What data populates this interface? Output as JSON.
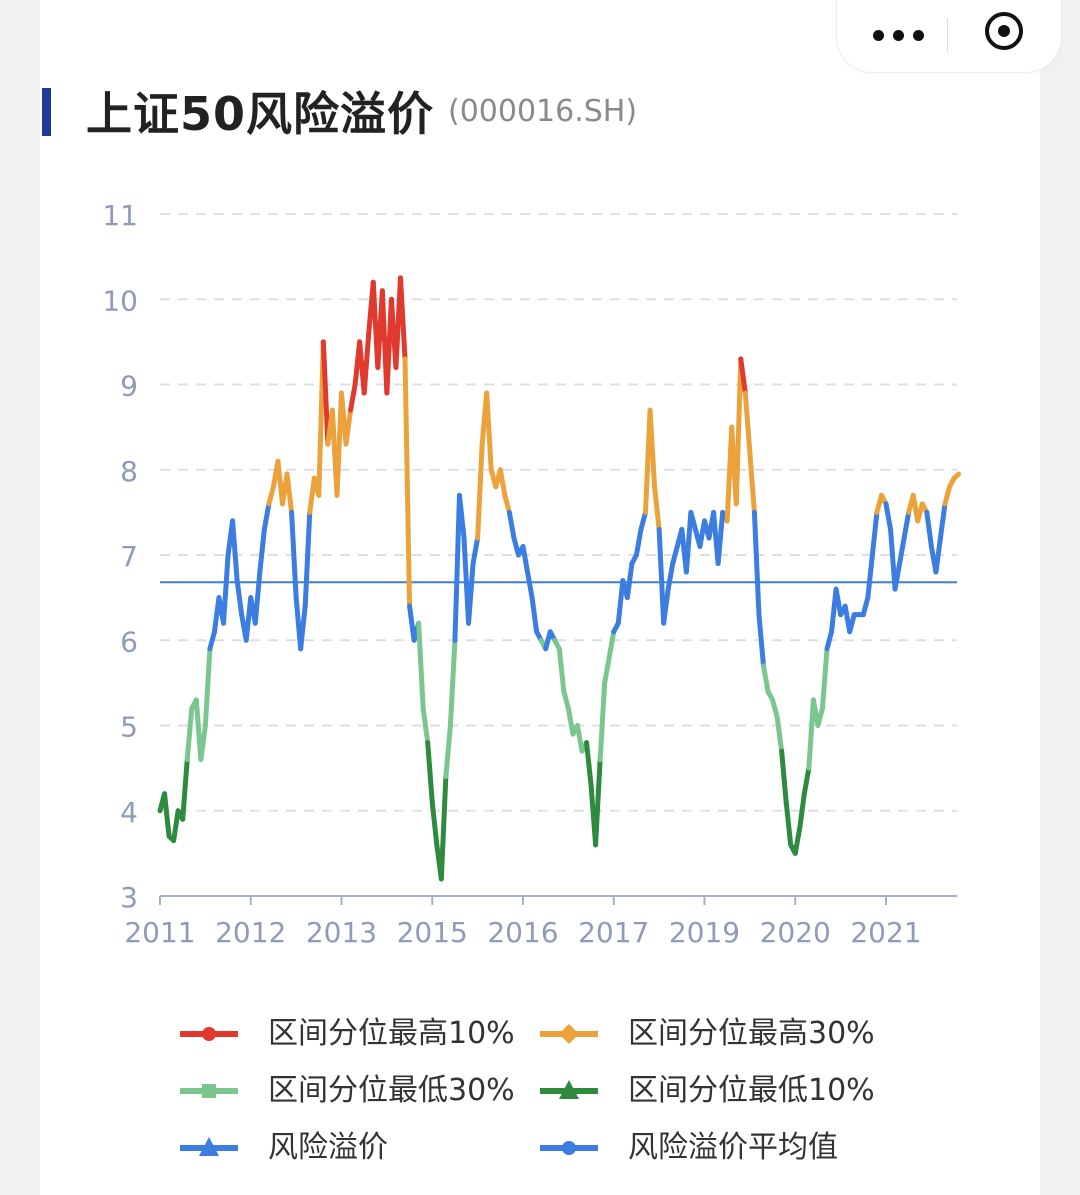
{
  "header": {
    "title": "上证50风险溢价",
    "code": "(000016.SH)"
  },
  "capsule": {
    "more_icon": "more-dots-icon",
    "close_icon": "target-icon"
  },
  "colors": {
    "top10": "#e03a2f",
    "top30": "#eba23a",
    "low30": "#79c78e",
    "low10": "#2e8b3e",
    "premium": "#3b7de0",
    "mean": "#3b7de0",
    "grid": "#dcdfe6",
    "axis": "#a7b0c8",
    "tick_text": "#8f9bb8"
  },
  "chart_data": {
    "type": "line",
    "ylim": [
      3,
      11
    ],
    "yticks": [
      "3",
      "4",
      "5",
      "6",
      "7",
      "8",
      "9",
      "10",
      "11"
    ],
    "xticks": [
      "2011",
      "2012",
      "2013",
      "2015",
      "2016",
      "2017",
      "2019",
      "2020",
      "2021"
    ],
    "xlim": [
      0,
      8.8
    ],
    "mean": 6.68,
    "thresholds": {
      "low10": 4.6,
      "low30": 6.0,
      "high30": 7.5,
      "high10": 8.85
    },
    "series_points": [
      [
        0.0,
        4.0
      ],
      [
        0.05,
        4.2
      ],
      [
        0.1,
        3.7
      ],
      [
        0.15,
        3.65
      ],
      [
        0.2,
        4.0
      ],
      [
        0.25,
        3.9
      ],
      [
        0.3,
        4.6
      ],
      [
        0.35,
        5.2
      ],
      [
        0.4,
        5.3
      ],
      [
        0.45,
        4.6
      ],
      [
        0.5,
        5.0
      ],
      [
        0.55,
        5.9
      ],
      [
        0.6,
        6.1
      ],
      [
        0.65,
        6.5
      ],
      [
        0.7,
        6.2
      ],
      [
        0.75,
        7.0
      ],
      [
        0.8,
        7.4
      ],
      [
        0.85,
        6.7
      ],
      [
        0.9,
        6.3
      ],
      [
        0.95,
        6.0
      ],
      [
        1.0,
        6.5
      ],
      [
        1.05,
        6.2
      ],
      [
        1.1,
        6.8
      ],
      [
        1.15,
        7.3
      ],
      [
        1.2,
        7.6
      ],
      [
        1.25,
        7.8
      ],
      [
        1.3,
        8.1
      ],
      [
        1.35,
        7.6
      ],
      [
        1.4,
        7.95
      ],
      [
        1.45,
        7.5
      ],
      [
        1.5,
        6.5
      ],
      [
        1.55,
        5.9
      ],
      [
        1.6,
        6.4
      ],
      [
        1.65,
        7.5
      ],
      [
        1.7,
        7.9
      ],
      [
        1.75,
        7.7
      ],
      [
        1.8,
        9.5
      ],
      [
        1.85,
        8.3
      ],
      [
        1.9,
        8.7
      ],
      [
        1.95,
        7.7
      ],
      [
        2.0,
        8.9
      ],
      [
        2.05,
        8.3
      ],
      [
        2.1,
        8.7
      ],
      [
        2.15,
        9.0
      ],
      [
        2.2,
        9.5
      ],
      [
        2.25,
        8.9
      ],
      [
        2.3,
        9.6
      ],
      [
        2.35,
        10.2
      ],
      [
        2.4,
        9.2
      ],
      [
        2.45,
        10.1
      ],
      [
        2.5,
        8.9
      ],
      [
        2.55,
        10.0
      ],
      [
        2.6,
        9.2
      ],
      [
        2.65,
        10.25
      ],
      [
        2.7,
        9.3
      ],
      [
        2.75,
        6.4
      ],
      [
        2.8,
        6.0
      ],
      [
        2.85,
        6.2
      ],
      [
        2.9,
        5.2
      ],
      [
        2.95,
        4.8
      ],
      [
        3.0,
        4.1
      ],
      [
        3.05,
        3.6
      ],
      [
        3.1,
        3.2
      ],
      [
        3.15,
        4.4
      ],
      [
        3.2,
        5.0
      ],
      [
        3.25,
        6.0
      ],
      [
        3.3,
        7.7
      ],
      [
        3.35,
        7.2
      ],
      [
        3.4,
        6.2
      ],
      [
        3.45,
        6.9
      ],
      [
        3.5,
        7.2
      ],
      [
        3.55,
        8.3
      ],
      [
        3.6,
        8.9
      ],
      [
        3.65,
        8.0
      ],
      [
        3.7,
        7.8
      ],
      [
        3.75,
        8.0
      ],
      [
        3.8,
        7.7
      ],
      [
        3.85,
        7.5
      ],
      [
        3.9,
        7.2
      ],
      [
        3.95,
        7.0
      ],
      [
        4.0,
        7.1
      ],
      [
        4.05,
        6.8
      ],
      [
        4.1,
        6.5
      ],
      [
        4.15,
        6.1
      ],
      [
        4.2,
        6.0
      ],
      [
        4.25,
        5.9
      ],
      [
        4.3,
        6.1
      ],
      [
        4.35,
        6.0
      ],
      [
        4.4,
        5.9
      ],
      [
        4.45,
        5.4
      ],
      [
        4.5,
        5.2
      ],
      [
        4.55,
        4.9
      ],
      [
        4.6,
        5.0
      ],
      [
        4.65,
        4.7
      ],
      [
        4.7,
        4.8
      ],
      [
        4.75,
        4.3
      ],
      [
        4.8,
        3.6
      ],
      [
        4.85,
        4.6
      ],
      [
        4.9,
        5.5
      ],
      [
        4.95,
        5.8
      ],
      [
        5.0,
        6.1
      ],
      [
        5.05,
        6.2
      ],
      [
        5.1,
        6.7
      ],
      [
        5.15,
        6.5
      ],
      [
        5.2,
        6.9
      ],
      [
        5.25,
        7.0
      ],
      [
        5.3,
        7.3
      ],
      [
        5.35,
        7.5
      ],
      [
        5.4,
        8.7
      ],
      [
        5.45,
        7.8
      ],
      [
        5.5,
        7.3
      ],
      [
        5.55,
        6.2
      ],
      [
        5.6,
        6.6
      ],
      [
        5.65,
        6.9
      ],
      [
        5.7,
        7.1
      ],
      [
        5.75,
        7.3
      ],
      [
        5.8,
        6.8
      ],
      [
        5.85,
        7.5
      ],
      [
        5.9,
        7.3
      ],
      [
        5.95,
        7.1
      ],
      [
        6.0,
        7.4
      ],
      [
        6.05,
        7.2
      ],
      [
        6.1,
        7.5
      ],
      [
        6.15,
        6.9
      ],
      [
        6.2,
        7.5
      ],
      [
        6.25,
        7.4
      ],
      [
        6.3,
        8.5
      ],
      [
        6.35,
        7.6
      ],
      [
        6.4,
        9.3
      ],
      [
        6.45,
        8.9
      ],
      [
        6.5,
        8.2
      ],
      [
        6.55,
        7.5
      ],
      [
        6.6,
        6.3
      ],
      [
        6.65,
        5.7
      ],
      [
        6.7,
        5.4
      ],
      [
        6.75,
        5.3
      ],
      [
        6.8,
        5.1
      ],
      [
        6.85,
        4.7
      ],
      [
        6.9,
        4.1
      ],
      [
        6.95,
        3.6
      ],
      [
        7.0,
        3.5
      ],
      [
        7.05,
        3.8
      ],
      [
        7.1,
        4.2
      ],
      [
        7.15,
        4.5
      ],
      [
        7.2,
        5.3
      ],
      [
        7.25,
        5.0
      ],
      [
        7.3,
        5.2
      ],
      [
        7.35,
        5.9
      ],
      [
        7.4,
        6.1
      ],
      [
        7.45,
        6.6
      ],
      [
        7.5,
        6.3
      ],
      [
        7.55,
        6.4
      ],
      [
        7.6,
        6.1
      ],
      [
        7.65,
        6.3
      ],
      [
        7.7,
        6.3
      ],
      [
        7.75,
        6.3
      ],
      [
        7.8,
        6.5
      ],
      [
        7.85,
        7.0
      ],
      [
        7.9,
        7.5
      ],
      [
        7.95,
        7.7
      ],
      [
        8.0,
        7.6
      ],
      [
        8.05,
        7.3
      ],
      [
        8.1,
        6.6
      ],
      [
        8.15,
        6.9
      ],
      [
        8.2,
        7.2
      ],
      [
        8.25,
        7.5
      ],
      [
        8.3,
        7.7
      ],
      [
        8.35,
        7.4
      ],
      [
        8.4,
        7.6
      ],
      [
        8.45,
        7.5
      ],
      [
        8.5,
        7.1
      ],
      [
        8.55,
        6.8
      ],
      [
        8.6,
        7.2
      ],
      [
        8.65,
        7.6
      ],
      [
        8.7,
        7.8
      ],
      [
        8.75,
        7.9
      ],
      [
        8.8,
        7.95
      ]
    ]
  },
  "legend": {
    "items": [
      {
        "label": "区间分位最高10%",
        "color": "#e03a2f",
        "marker": "circle"
      },
      {
        "label": "区间分位最高30%",
        "color": "#eba23a",
        "marker": "diamond"
      },
      {
        "label": "区间分位最低30%",
        "color": "#79c78e",
        "marker": "square"
      },
      {
        "label": "区间分位最低10%",
        "color": "#2e8b3e",
        "marker": "triangle"
      },
      {
        "label": "风险溢价",
        "color": "#3b7de0",
        "marker": "triangle"
      },
      {
        "label": "风险溢价平均值",
        "color": "#3b7de0",
        "marker": "circle"
      }
    ]
  }
}
